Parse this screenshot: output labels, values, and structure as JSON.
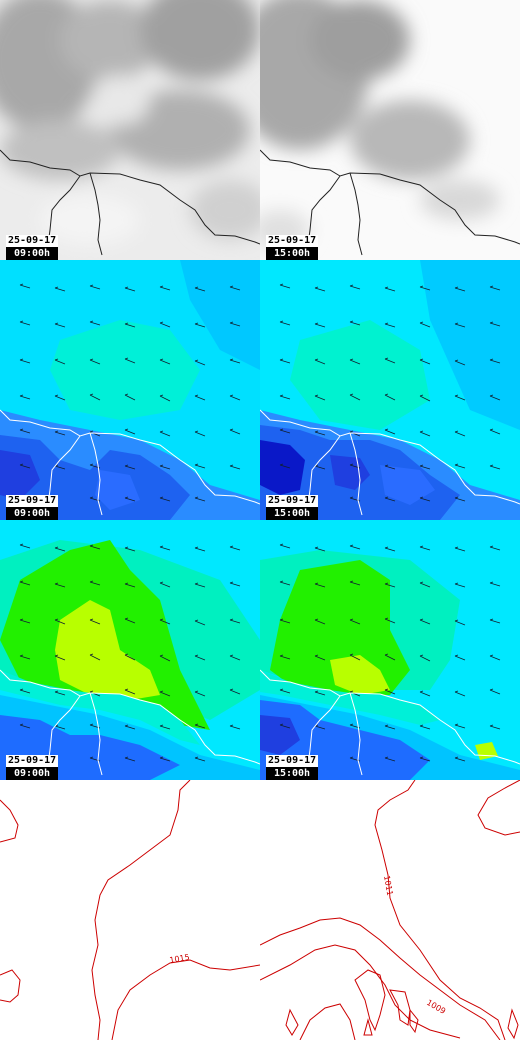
{
  "panels": [
    {
      "date": "25-09-17",
      "time": "09:00h"
    },
    {
      "date": "25-09-17",
      "time": "15:00h"
    },
    {
      "date": "25-09-17",
      "time": "09:00h"
    },
    {
      "date": "25-09-17",
      "time": "15:00h"
    },
    {
      "date": "25-09-17",
      "time": "09:00h"
    },
    {
      "date": "25-09-17",
      "time": "15:00h"
    }
  ],
  "pressure": {
    "left_label": "1015",
    "right_labels": [
      "1011",
      "1009"
    ]
  },
  "colors": {
    "cloud_light": "#f2f2f2",
    "cloud_dark": "#9c9c9c",
    "humidity_cyan": "#00e5ff",
    "humidity_blue": "#1e7cff",
    "humidity_dark": "#0015c8",
    "temp_green": "#22f000",
    "temp_yellow": "#b8ff00",
    "isobar": "#cc0000"
  },
  "icons": [
    "coastline-icon",
    "wind-arrow-icon"
  ]
}
